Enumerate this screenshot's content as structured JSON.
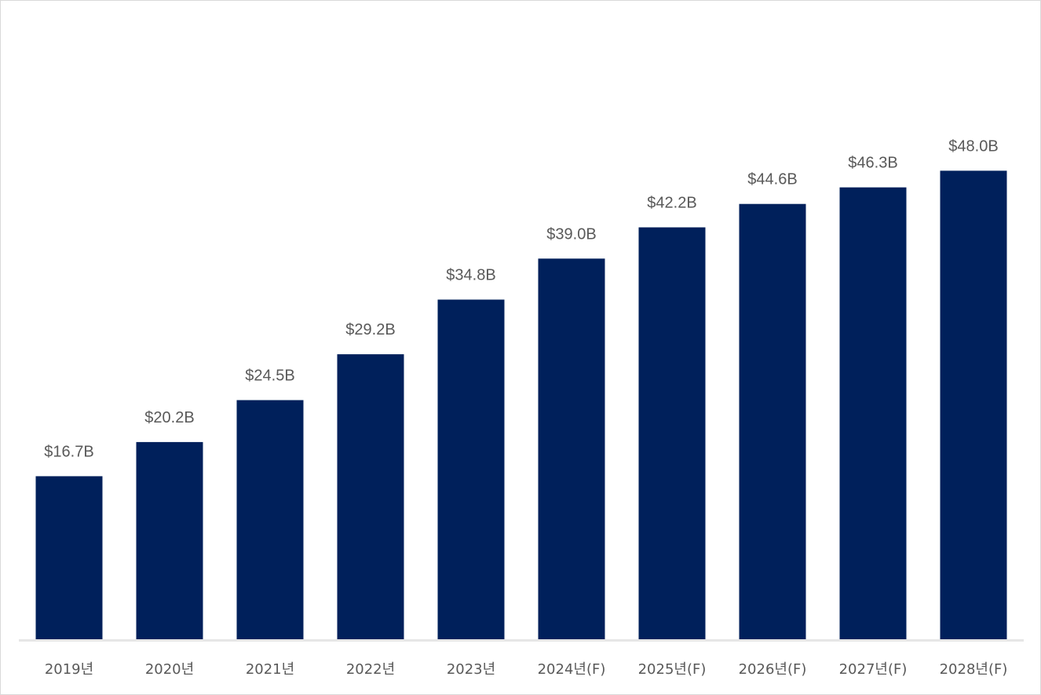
{
  "chart_data": {
    "type": "bar",
    "categories": [
      "2019년",
      "2020년",
      "2021년",
      "2022년",
      "2023년",
      "2024년(F)",
      "2025년(F)",
      "2026년(F)",
      "2027년(F)",
      "2028년(F)"
    ],
    "values": [
      16.7,
      20.2,
      24.5,
      29.2,
      34.8,
      39.0,
      42.2,
      44.6,
      46.3,
      48.0
    ],
    "data_labels": [
      "$16.7B",
      "$20.2B",
      "$24.5B",
      "$29.2B",
      "$34.8B",
      "$39.0B",
      "$42.2B",
      "$44.6B",
      "$46.3B",
      "$48.0B"
    ],
    "title": "",
    "xlabel": "",
    "ylabel": "",
    "ylim": [
      0,
      56
    ],
    "grid": false,
    "legend": "none",
    "colors": {
      "bar": "#00205b",
      "label": "#595959",
      "axis": "#e6e6e6",
      "border": "#d9d9d9"
    }
  }
}
